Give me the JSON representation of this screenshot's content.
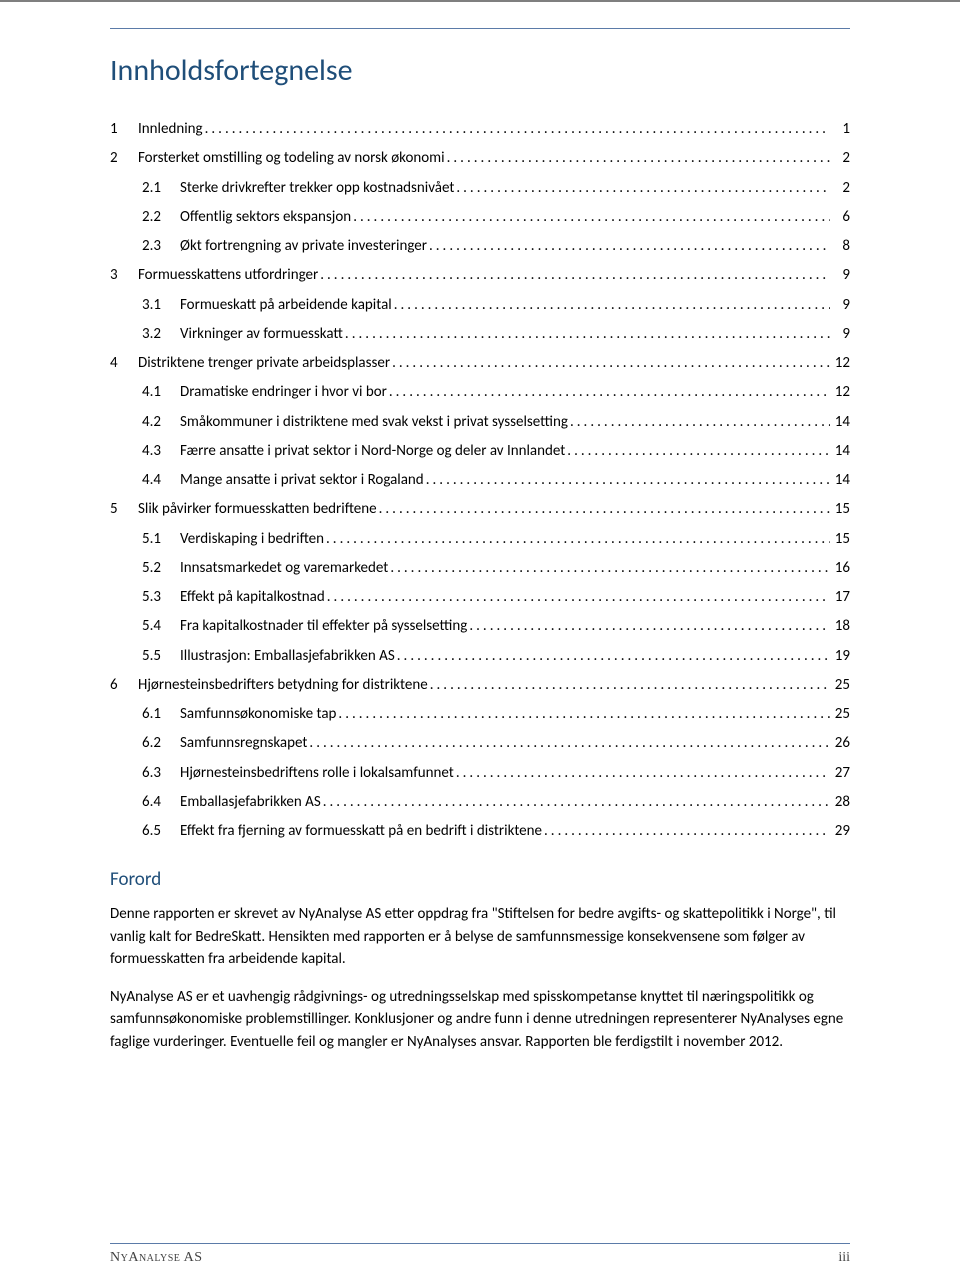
{
  "title": "Innholdsfortegnelse",
  "toc": [
    {
      "lvl": 1,
      "num": "1",
      "text": "Innledning",
      "page": "1"
    },
    {
      "lvl": 1,
      "num": "2",
      "text": "Forsterket omstilling og todeling av norsk økonomi",
      "page": "2"
    },
    {
      "lvl": 2,
      "num": "2.1",
      "text": "Sterke drivkrefter trekker opp kostnadsnivået",
      "page": "2"
    },
    {
      "lvl": 2,
      "num": "2.2",
      "text": "Offentlig sektors ekspansjon",
      "page": "6"
    },
    {
      "lvl": 2,
      "num": "2.3",
      "text": "Økt fortrengning av private investeringer",
      "page": "8"
    },
    {
      "lvl": 1,
      "num": "3",
      "text": "Formuesskattens utfordringer",
      "page": "9"
    },
    {
      "lvl": 2,
      "num": "3.1",
      "text": "Formueskatt på arbeidende kapital",
      "page": "9"
    },
    {
      "lvl": 2,
      "num": "3.2",
      "text": "Virkninger av formuesskatt",
      "page": "9"
    },
    {
      "lvl": 1,
      "num": "4",
      "text": "Distriktene trenger private arbeidsplasser",
      "page": "12"
    },
    {
      "lvl": 2,
      "num": "4.1",
      "text": "Dramatiske endringer i hvor vi bor",
      "page": "12"
    },
    {
      "lvl": 2,
      "num": "4.2",
      "text": "Småkommuner i distriktene med svak vekst i privat sysselsetting",
      "page": "14"
    },
    {
      "lvl": 2,
      "num": "4.3",
      "text": "Færre ansatte i privat sektor i Nord-Norge og deler av Innlandet",
      "page": "14"
    },
    {
      "lvl": 2,
      "num": "4.4",
      "text": "Mange ansatte i privat sektor i Rogaland",
      "page": "14"
    },
    {
      "lvl": 1,
      "num": "5",
      "text": "Slik påvirker formuesskatten bedriftene",
      "page": "15"
    },
    {
      "lvl": 2,
      "num": "5.1",
      "text": "Verdiskaping i bedriften",
      "page": "15"
    },
    {
      "lvl": 2,
      "num": "5.2",
      "text": "Innsatsmarkedet og varemarkedet",
      "page": "16"
    },
    {
      "lvl": 2,
      "num": "5.3",
      "text": "Effekt på kapitalkostnad",
      "page": "17"
    },
    {
      "lvl": 2,
      "num": "5.4",
      "text": "Fra kapitalkostnader til effekter på sysselsetting",
      "page": "18"
    },
    {
      "lvl": 2,
      "num": "5.5",
      "text": "Illustrasjon: Emballasjefabrikken AS",
      "page": "19"
    },
    {
      "lvl": 1,
      "num": "6",
      "text": "Hjørnesteinsbedrifters betydning for distriktene",
      "page": "25"
    },
    {
      "lvl": 2,
      "num": "6.1",
      "text": "Samfunnsøkonomiske tap",
      "page": "25"
    },
    {
      "lvl": 2,
      "num": "6.2",
      "text": "Samfunnsregnskapet",
      "page": "26"
    },
    {
      "lvl": 2,
      "num": "6.3",
      "text": "Hjørnesteinsbedriftens rolle i lokalsamfunnet",
      "page": "27"
    },
    {
      "lvl": 2,
      "num": "6.4",
      "text": "Emballasjefabrikken AS",
      "page": "28"
    },
    {
      "lvl": 2,
      "num": "6.5",
      "text": "Effekt fra fjerning av formuesskatt på en bedrift i distriktene",
      "page": "29"
    }
  ],
  "forord": {
    "heading": "Forord",
    "p1": "Denne rapporten er skrevet av NyAnalyse AS etter oppdrag fra \"Stiftelsen for bedre avgifts- og skattepolitikk i Norge\", til vanlig kalt for BedreSkatt. Hensikten med rapporten er å belyse de samfunnsmessige konsekvensene som følger av formuesskatten fra arbeidende kapital.",
    "p2": "NyAnalyse AS er et uavhengig rådgivnings- og utredningsselskap med spisskompetanse knyttet til næringspolitikk og samfunnsøkonomiske problemstillinger. Konklusjoner og andre funn i denne utredningen representerer NyAnalyses egne faglige vurderinger. Eventuelle feil og mangler er NyAnalyses ansvar. Rapporten ble ferdigstilt i november 2012."
  },
  "footer": {
    "left": "NyAnalyse AS",
    "right": "iii"
  },
  "colors": {
    "heading": "#1f4e79",
    "rule": "#5b7ba8",
    "text": "#000000",
    "footer_text": "#414141",
    "background": "#ffffff"
  },
  "typography": {
    "body_family": "Calibri",
    "body_size_pt": 11,
    "h1_size_pt": 22,
    "h2_size_pt": 14,
    "footer_family": "Times New Roman"
  }
}
